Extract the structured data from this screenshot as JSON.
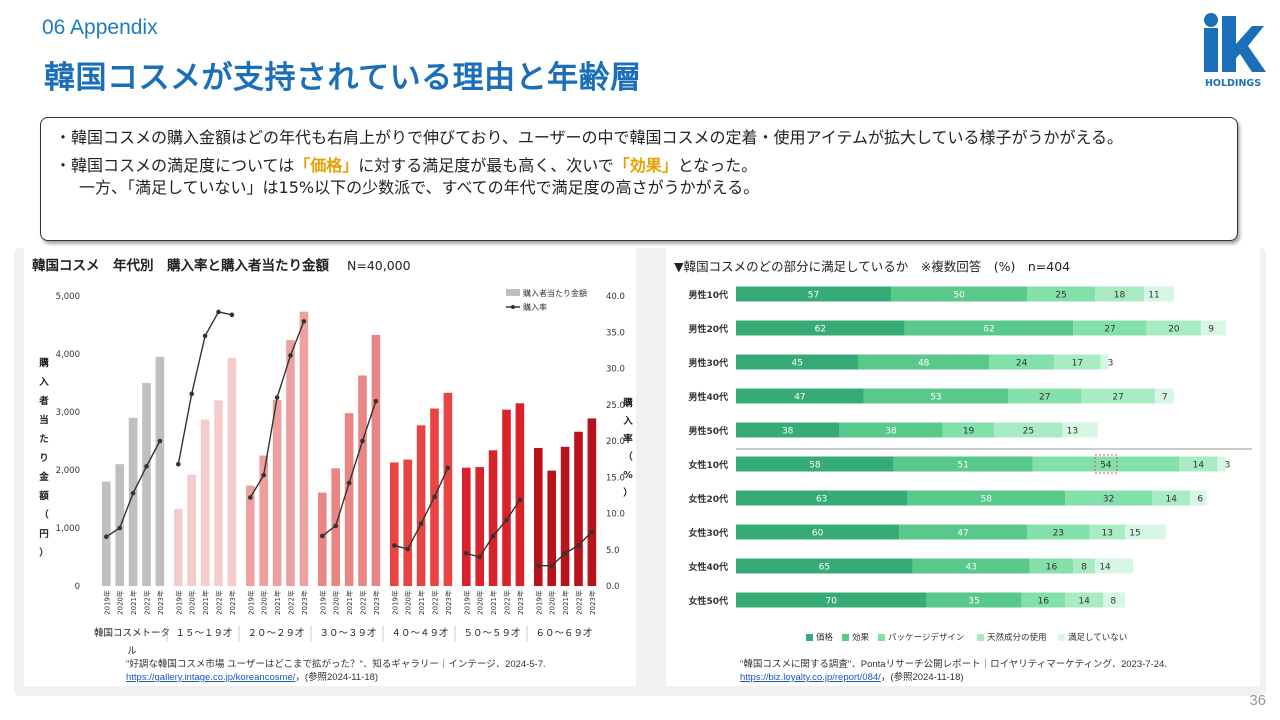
{
  "header": {
    "section": "06  Appendix",
    "title": "韓国コスメが支持されている理由と年齢層"
  },
  "logo": {
    "text": "HOLDINGS"
  },
  "summary": {
    "line1": "・韓国コスメの購入金額はどの年代も右肩上がりで伸びており、ユーザーの中で韓国コスメの定着・使用アイテムが拡大している様子がうかがえる。",
    "line2a": "・韓国コスメの満足度については",
    "line2b": "「価格」",
    "line2c": "に対する満足度が最も高く、次いで",
    "line2d": "「効果」",
    "line2e": "となった。",
    "line3": "一方、「満足していない」は15%以下の少数派で、すべての年代で満足度の高さがうかがえる。"
  },
  "left_chart_title": "韓国コスメ　年代別　購入率と購入者当たり金額",
  "left_chart_n": "N=40,000",
  "right_chart_title": "▼韓国コスメのどの部分に満足しているか　※複数回答　(%)　n=404",
  "left_source": {
    "line1": "\"好調な韓国コスメ市場 ユーザーはどこまで拡がった？\"．知るギャラリー｜インテージ．2024-5-7.",
    "link": "https://gallery.intage.co.jp/koreancosme/",
    "line2_rest": "，(参照2024-11-18)"
  },
  "right_source": {
    "line1": "\"韓国コスメに関する調査\"．Pontaリサーチ公開レポート｜ロイヤリティマーケティング．2023-7-24.",
    "link": "https://biz.loyalty.co.jp/report/084/",
    "line2_rest": "，(参照2024-11-18)"
  },
  "page_number": "36",
  "chart_data": [
    {
      "type": "bar",
      "title": "韓国コスメ　年代別　購入率と購入者当たり金額",
      "ylabel": "購入者当たり金額（円）",
      "y2label": "購入率（%）",
      "ylim": [
        0,
        5000
      ],
      "y2lim": [
        0,
        40
      ],
      "yticks": [
        "0",
        "1,000",
        "2,000",
        "3,000",
        "4,000",
        "5,000"
      ],
      "y2ticks": [
        "0.0",
        "5.0",
        "10.0",
        "15.0",
        "20.0",
        "25.0",
        "30.0",
        "35.0",
        "40.0"
      ],
      "legend": [
        "購入者当たり金額",
        "購入率"
      ],
      "years": [
        "2019年",
        "2020年",
        "2021年",
        "2022年",
        "2023年"
      ],
      "groups": [
        {
          "label": "韓国コスメトータル",
          "label_lines": [
            "韓国コスメトータ",
            "ル"
          ],
          "color": "#bfbfbf",
          "amount": [
            1800,
            2100,
            2900,
            3500,
            3950
          ],
          "rate": [
            6.8,
            8.0,
            12.8,
            16.5,
            20.0
          ]
        },
        {
          "label": "１５～１９才",
          "color": "#f4cccc",
          "amount": [
            1330,
            1920,
            2870,
            3200,
            3930
          ],
          "rate": [
            16.8,
            26.5,
            34.5,
            37.8,
            37.4
          ]
        },
        {
          "label": "２０～２９才",
          "color": "#eda0a0",
          "amount": [
            1730,
            2250,
            3210,
            4240,
            4730
          ],
          "rate": [
            12.2,
            15.3,
            26.0,
            31.8,
            36.5
          ]
        },
        {
          "label": "３０～３９才",
          "color": "#ea8585",
          "amount": [
            1610,
            2030,
            2980,
            3630,
            4330
          ],
          "rate": [
            6.9,
            8.3,
            14.2,
            20.0,
            25.5
          ]
        },
        {
          "label": "４０～４９才",
          "color": "#e84444",
          "amount": [
            2130,
            2180,
            2770,
            3060,
            3330
          ],
          "rate": [
            5.6,
            5.1,
            8.6,
            12.3,
            16.3
          ]
        },
        {
          "label": "５０～５９才",
          "color": "#d9222a",
          "amount": [
            2040,
            2050,
            2340,
            3040,
            3150
          ],
          "rate": [
            4.5,
            4.0,
            6.9,
            9.1,
            11.9
          ]
        },
        {
          "label": "６０～６９才",
          "color": "#b8121b",
          "amount": [
            2380,
            1990,
            2400,
            2660,
            2890
          ],
          "rate": [
            2.8,
            2.8,
            4.5,
            5.6,
            7.5
          ]
        }
      ]
    },
    {
      "type": "bar",
      "orientation": "horizontal-stacked",
      "title": "▼韓国コスメのどの部分に満足しているか　※複数回答　(%)　n=404",
      "categories": [
        "男性10代",
        "男性20代",
        "男性30代",
        "男性40代",
        "男性50代",
        "女性10代",
        "女性20代",
        "女性30代",
        "女性40代",
        "女性50代"
      ],
      "series": [
        {
          "name": "価格",
          "color": "#37ab76",
          "values": [
            57,
            62,
            45,
            47,
            38,
            58,
            63,
            60,
            65,
            70
          ]
        },
        {
          "name": "効果",
          "color": "#59c88b",
          "values": [
            50,
            62,
            48,
            53,
            38,
            51,
            58,
            47,
            43,
            35
          ]
        },
        {
          "name": "パッケージデザイン",
          "color": "#84e0aa",
          "values": [
            25,
            27,
            24,
            27,
            19,
            54,
            32,
            23,
            16,
            16
          ]
        },
        {
          "name": "天然成分の使用",
          "color": "#a9ecc4",
          "values": [
            18,
            20,
            17,
            27,
            25,
            14,
            14,
            13,
            8,
            14
          ]
        },
        {
          "name": "満足していない",
          "color": "#d7f7e4",
          "values": [
            11,
            9,
            3,
            7,
            13,
            3,
            6,
            15,
            14,
            8
          ]
        }
      ],
      "highlight": {
        "category": "女性10代",
        "series": "パッケージデザイン"
      }
    }
  ]
}
